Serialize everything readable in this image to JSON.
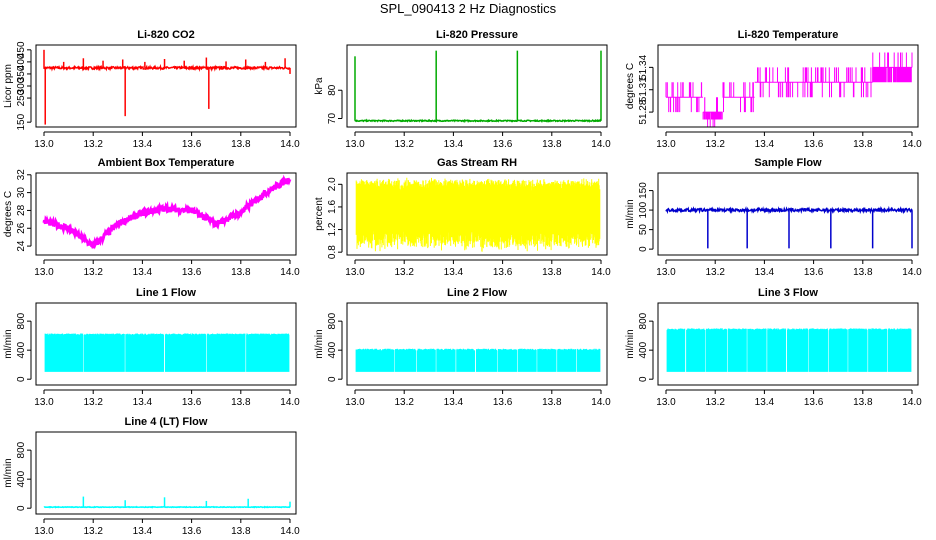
{
  "figure": {
    "title": "SPL_090413  2 Hz Diagnostics"
  },
  "chart_data": [
    {
      "id": "co2",
      "type": "line",
      "title": "Li-820 CO2",
      "ylabel": "Licor ppm",
      "color": "#ff0000",
      "xlim": [
        13.0,
        14.0
      ],
      "ylim": [
        130,
        470
      ],
      "x_ticks": [
        "13.0",
        "13.2",
        "13.4",
        "13.6",
        "13.8",
        "14.0"
      ],
      "y_ticks": [
        "150",
        "250",
        "300",
        "350",
        "400",
        "450"
      ],
      "y_tick_values": [
        150,
        250,
        300,
        350,
        400,
        450
      ],
      "baseline": 375,
      "noise": 5,
      "spikes": [
        [
          13.0,
          450
        ],
        [
          13.005,
          140
        ],
        [
          13.08,
          400
        ],
        [
          13.16,
          415
        ],
        [
          13.24,
          405
        ],
        [
          13.32,
          410
        ],
        [
          13.33,
          175
        ],
        [
          13.41,
          400
        ],
        [
          13.49,
          412
        ],
        [
          13.57,
          405
        ],
        [
          13.66,
          418
        ],
        [
          13.67,
          205
        ],
        [
          13.74,
          402
        ],
        [
          13.82,
          410
        ],
        [
          13.9,
          400
        ],
        [
          13.98,
          415
        ],
        [
          14.0,
          350
        ]
      ]
    },
    {
      "id": "pressure",
      "type": "line",
      "title": "Li-820 Pressure",
      "ylabel": "kPa",
      "color": "#00aa00",
      "xlim": [
        13.0,
        14.0
      ],
      "ylim": [
        67,
        96
      ],
      "x_ticks": [
        "13.0",
        "13.2",
        "13.4",
        "13.6",
        "13.8",
        "14.0"
      ],
      "y_ticks": [
        "70",
        "80"
      ],
      "y_tick_values": [
        70,
        80
      ],
      "baseline": 69.2,
      "noise": 0.2,
      "spikes": [
        [
          13.0,
          92
        ],
        [
          13.33,
          94
        ],
        [
          13.66,
          94
        ],
        [
          14.0,
          94
        ]
      ]
    },
    {
      "id": "temperature",
      "type": "step",
      "title": "Li-820 Temperature",
      "ylabel": "degrees C",
      "color": "#ff00ff",
      "xlim": [
        13.0,
        14.0
      ],
      "ylim": [
        51.26,
        51.37
      ],
      "x_ticks": [
        "13.0",
        "13.2",
        "13.4",
        "13.6",
        "13.8",
        "14.0"
      ],
      "y_ticks": [
        "51.28",
        "51.31",
        "51.34"
      ],
      "y_tick_values": [
        51.28,
        51.31,
        51.34
      ],
      "levels": [
        51.3,
        51.28,
        51.31,
        51.32,
        51.34
      ],
      "segments": [
        [
          13.0,
          13.15,
          51.3
        ],
        [
          13.15,
          13.23,
          51.28
        ],
        [
          13.23,
          13.36,
          51.3
        ],
        [
          13.36,
          13.64,
          51.32
        ],
        [
          13.64,
          13.84,
          51.32
        ],
        [
          13.84,
          14.0,
          51.34
        ]
      ]
    },
    {
      "id": "ambient",
      "type": "line",
      "title": "Ambient Box Temperature",
      "ylabel": "degrees C",
      "color": "#ff00ff",
      "xlim": [
        13.0,
        14.0
      ],
      "ylim": [
        23,
        32.2
      ],
      "x_ticks": [
        "13.0",
        "13.2",
        "13.4",
        "13.6",
        "13.8",
        "14.0"
      ],
      "y_ticks": [
        "24",
        "26",
        "28",
        "30",
        "32"
      ],
      "y_tick_values": [
        24,
        26,
        28,
        30,
        32
      ],
      "x": [
        13.0,
        13.1,
        13.2,
        13.3,
        13.4,
        13.5,
        13.6,
        13.7,
        13.8,
        13.9,
        14.0
      ],
      "y": [
        26.8,
        26.0,
        24.0,
        26.5,
        27.7,
        28.2,
        28.0,
        26.5,
        27.8,
        30.0,
        31.6
      ],
      "noise": 0.35
    },
    {
      "id": "rh",
      "type": "line",
      "title": "Gas Stream RH",
      "ylabel": "percent",
      "color": "#ffff00",
      "xlim": [
        13.0,
        14.0
      ],
      "ylim": [
        0.75,
        2.2
      ],
      "x_ticks": [
        "13.0",
        "13.2",
        "13.4",
        "13.6",
        "13.8",
        "14.0"
      ],
      "y_ticks": [
        "0.8",
        "1.2",
        "1.6",
        "2.0"
      ],
      "y_tick_values": [
        0.8,
        1.2,
        1.6,
        2.0
      ],
      "band": [
        1.0,
        2.0
      ]
    },
    {
      "id": "sample_flow",
      "type": "line",
      "title": "Sample Flow",
      "ylabel": "ml/min",
      "color": "#0000cc",
      "xlim": [
        13.0,
        14.0
      ],
      "ylim": [
        -15,
        195
      ],
      "x_ticks": [
        "13.0",
        "13.2",
        "13.4",
        "13.6",
        "13.8",
        "14.0"
      ],
      "y_ticks": [
        "0",
        "50",
        "100",
        "150"
      ],
      "y_tick_values": [
        0,
        50,
        100,
        150
      ],
      "baseline": 100,
      "noise": 4,
      "dips": [
        13.17,
        13.33,
        13.5,
        13.67,
        13.84,
        14.0
      ]
    },
    {
      "id": "line1",
      "type": "line",
      "title": "Line 1 Flow",
      "ylabel": "ml/min",
      "color": "#00ffff",
      "xlim": [
        13.0,
        14.0
      ],
      "ylim": [
        -80,
        1050
      ],
      "x_ticks": [
        "13.0",
        "13.2",
        "13.4",
        "13.6",
        "13.8",
        "14.0"
      ],
      "y_ticks": [
        "0",
        "400",
        "800"
      ],
      "y_tick_values": [
        0,
        400,
        800
      ],
      "band": [
        100,
        630
      ],
      "gaps": [
        13.16,
        13.33,
        13.49,
        13.66,
        13.82
      ]
    },
    {
      "id": "line2",
      "type": "line",
      "title": "Line 2 Flow",
      "ylabel": "ml/min",
      "color": "#00ffff",
      "xlim": [
        13.0,
        14.0
      ],
      "ylim": [
        -80,
        1050
      ],
      "x_ticks": [
        "13.0",
        "13.2",
        "13.4",
        "13.6",
        "13.8",
        "14.0"
      ],
      "y_ticks": [
        "0",
        "400",
        "800"
      ],
      "y_tick_values": [
        0,
        400,
        800
      ],
      "band": [
        100,
        420
      ],
      "gaps": [
        13.16,
        13.25,
        13.33,
        13.41,
        13.49,
        13.58,
        13.66,
        13.74,
        13.82,
        13.9
      ]
    },
    {
      "id": "line3",
      "type": "line",
      "title": "Line 3 Flow",
      "ylabel": "ml/min",
      "color": "#00ffff",
      "xlim": [
        13.0,
        14.0
      ],
      "ylim": [
        -80,
        1050
      ],
      "x_ticks": [
        "13.0",
        "13.2",
        "13.4",
        "13.6",
        "13.8",
        "14.0"
      ],
      "y_ticks": [
        "0",
        "400",
        "800"
      ],
      "y_tick_values": [
        0,
        400,
        800
      ],
      "band": [
        100,
        700
      ],
      "gaps": [
        13.08,
        13.16,
        13.25,
        13.33,
        13.41,
        13.49,
        13.58,
        13.66,
        13.74,
        13.82,
        13.9
      ]
    },
    {
      "id": "line4",
      "type": "line",
      "title": "Line 4 (LT) Flow",
      "ylabel": "ml/min",
      "color": "#00ffff",
      "xlim": [
        13.0,
        14.0
      ],
      "ylim": [
        -80,
        1050
      ],
      "x_ticks": [
        "13.0",
        "13.2",
        "13.4",
        "13.6",
        "13.8",
        "14.0"
      ],
      "y_ticks": [
        "0",
        "400",
        "800"
      ],
      "y_tick_values": [
        0,
        400,
        800
      ],
      "baseline": 15,
      "noise": 4,
      "spikes": [
        [
          13.16,
          160
        ],
        [
          13.33,
          110
        ],
        [
          13.49,
          150
        ],
        [
          13.66,
          100
        ],
        [
          13.83,
          130
        ],
        [
          14.0,
          90
        ]
      ]
    }
  ]
}
